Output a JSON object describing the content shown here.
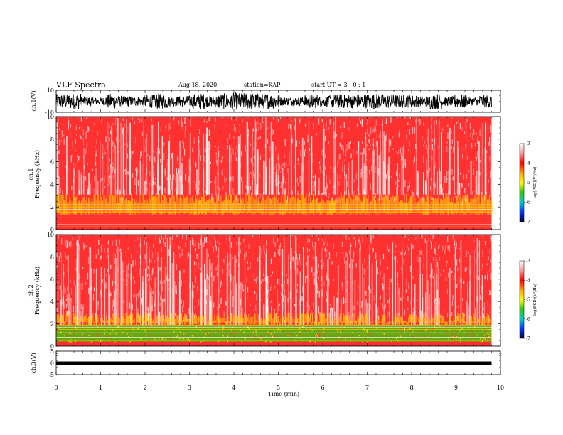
{
  "header": {
    "title": "VLF Spectra",
    "date": "Aug.18, 2020",
    "station": "station=KAP",
    "start": "start UT = 3 : 0 : 1"
  },
  "colors": {
    "spectro_base": "#ff1a1a",
    "spectro_light": "#ffb3b3",
    "yellow": "#ffd400",
    "green": "#33cc00",
    "trace": "#000000"
  },
  "chart_data": [
    {
      "type": "line",
      "panel": "ch1-waveform",
      "ylabel": "ch.1(V)",
      "ylim": [
        -10,
        10
      ],
      "yticks": [
        "10",
        "-10"
      ],
      "xlim": [
        0,
        10
      ],
      "note_on_data": "dense noise trace spanning most of the range",
      "x": [
        0,
        9.8
      ],
      "y_band": [
        -8,
        8
      ]
    },
    {
      "type": "heatmap",
      "panel": "ch1-spectrogram",
      "ylabel": "ch.1\nFrequency (kHz)",
      "ylim": [
        0,
        10
      ],
      "yticks": [
        "0",
        "2",
        "4",
        "6",
        "8",
        "10"
      ],
      "xlim": [
        0,
        10
      ],
      "colorbar": {
        "label": "log(PSD)(V²/Hz)",
        "range": [
          -7,
          -3
        ],
        "ticks": [
          "-3",
          "-4",
          "-5",
          "-6",
          "-7"
        ]
      },
      "features": {
        "yellow_band_khz": [
          1.3,
          3.2
        ],
        "lines_khz": [
          0.25,
          0.45,
          0.65,
          0.85,
          1.05,
          1.3,
          1.55,
          1.8,
          2.0,
          2.2
        ]
      }
    },
    {
      "type": "heatmap",
      "panel": "ch2-spectrogram",
      "ylabel": "ch.2\nFrequency (kHz)",
      "ylim": [
        0,
        10
      ],
      "yticks": [
        "0",
        "2",
        "4",
        "6",
        "8",
        "10"
      ],
      "xlim": [
        0,
        10
      ],
      "colorbar": {
        "label": "log(PSD)(V²/Hz)",
        "range": [
          -7,
          -3
        ],
        "ticks": [
          "-3",
          "-4",
          "-5",
          "-6",
          "-7"
        ]
      },
      "features": {
        "green_band_khz": [
          0.4,
          1.9
        ],
        "yellow_band_khz": [
          1.9,
          3.0
        ],
        "lines_khz": [
          0.5,
          0.8,
          1.0,
          1.2,
          1.5,
          1.7,
          1.9
        ]
      }
    },
    {
      "type": "line",
      "panel": "ch3-waveform",
      "ylabel": "ch.3(V)",
      "ylim": [
        -5,
        5
      ],
      "yticks": [
        "5",
        "0",
        "-5"
      ],
      "xlim": [
        0,
        10
      ],
      "x": [
        0,
        9.8
      ],
      "y_band": [
        -1.0,
        0.6
      ]
    }
  ],
  "xaxis": {
    "label": "Time (min)",
    "ticks": [
      "0",
      "1",
      "2",
      "3",
      "4",
      "5",
      "6",
      "7",
      "8",
      "9",
      "10"
    ]
  }
}
